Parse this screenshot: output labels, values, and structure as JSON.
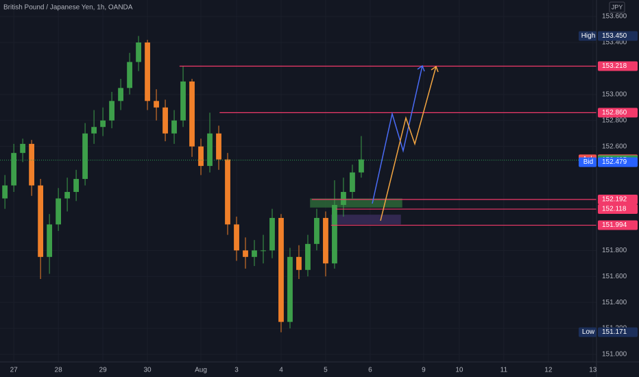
{
  "chart_data": {
    "type": "candlestick",
    "title": "British Pound / Japanese Yen, 1h, OANDA",
    "currency": "JPY",
    "up_color": "#3d9f4a",
    "down_color": "#f0802a",
    "level_color": "#f23a6a",
    "grid": true,
    "xlim": [
      -0.31,
      13.08
    ],
    "ylim": [
      150.942,
      153.727
    ],
    "xticks": [
      {
        "value": 0,
        "label": "27"
      },
      {
        "value": 1,
        "label": "28"
      },
      {
        "value": 2,
        "label": "29"
      },
      {
        "value": 3,
        "label": "30"
      },
      {
        "value": 4.2,
        "label": "Aug"
      },
      {
        "value": 5,
        "label": "3"
      },
      {
        "value": 6,
        "label": "4"
      },
      {
        "value": 7,
        "label": "5"
      },
      {
        "value": 8,
        "label": "6"
      },
      {
        "value": 9.2,
        "label": "9"
      },
      {
        "value": 10,
        "label": "10"
      },
      {
        "value": 11,
        "label": "11"
      },
      {
        "value": 12,
        "label": "12"
      },
      {
        "value": 13,
        "label": "13"
      }
    ],
    "yticks": [
      {
        "value": 153.6,
        "label": "153.600"
      },
      {
        "value": 153.4,
        "label": "153.400"
      },
      {
        "value": 153.0,
        "label": "153.000"
      },
      {
        "value": 152.8,
        "label": "152.800"
      },
      {
        "value": 152.6,
        "label": "152.600"
      },
      {
        "value": 151.8,
        "label": "151.800"
      },
      {
        "value": 151.6,
        "label": "151.600"
      },
      {
        "value": 151.4,
        "label": "151.400"
      },
      {
        "value": 151.2,
        "label": "151.200"
      },
      {
        "value": 151.0,
        "label": "151.000"
      }
    ],
    "x": [
      -0.2,
      0,
      0.2,
      0.4,
      0.6,
      0.8,
      1,
      1.2,
      1.4,
      1.6,
      1.8,
      2,
      2.2,
      2.4,
      2.6,
      2.8,
      3,
      3.2,
      3.4,
      3.6,
      3.8,
      4,
      4.2,
      4.4,
      4.6,
      4.8,
      5,
      5.2,
      5.4,
      5.6,
      5.8,
      6,
      6.2,
      6.4,
      6.6,
      6.8,
      7,
      7.2,
      7.4,
      7.6,
      7.8
    ],
    "open": [
      152.2,
      152.3,
      152.55,
      152.62,
      152.3,
      151.75,
      152.0,
      152.2,
      152.25,
      152.35,
      152.7,
      152.75,
      152.8,
      152.95,
      153.05,
      153.25,
      153.4,
      152.95,
      152.9,
      152.7,
      152.8,
      153.1,
      152.6,
      152.45,
      152.7,
      152.5,
      152.0,
      151.8,
      151.75,
      151.8,
      151.8,
      152.05,
      151.25,
      151.75,
      151.65,
      151.85,
      152.05,
      151.7,
      152.15,
      152.25,
      152.4
    ],
    "high": [
      152.38,
      152.62,
      152.66,
      152.65,
      152.35,
      152.08,
      152.28,
      152.36,
      152.42,
      152.78,
      152.88,
      152.9,
      153.02,
      153.12,
      153.32,
      153.45,
      153.42,
      153.04,
      152.96,
      152.88,
      153.22,
      153.12,
      152.66,
      152.86,
      152.76,
      152.55,
      152.06,
      151.9,
      151.88,
      151.92,
      152.12,
      152.08,
      151.82,
      151.84,
      151.92,
      152.12,
      152.1,
      152.34,
      152.36,
      152.46,
      152.68
    ],
    "low": [
      152.12,
      152.25,
      152.48,
      152.22,
      151.58,
      151.62,
      151.95,
      152.1,
      152.18,
      152.3,
      152.62,
      152.68,
      152.74,
      152.88,
      153.0,
      153.18,
      152.88,
      152.8,
      152.64,
      152.62,
      152.75,
      152.52,
      152.38,
      152.4,
      152.42,
      151.92,
      151.72,
      151.66,
      151.68,
      151.7,
      151.74,
      151.17,
      151.2,
      151.58,
      151.6,
      151.8,
      151.6,
      151.66,
      152.06,
      152.2,
      152.36
    ],
    "close": [
      152.3,
      152.55,
      152.62,
      152.3,
      151.75,
      152.0,
      152.2,
      152.25,
      152.35,
      152.7,
      152.75,
      152.8,
      152.95,
      153.05,
      153.25,
      153.4,
      152.95,
      152.9,
      152.7,
      152.8,
      153.1,
      152.6,
      152.45,
      152.7,
      152.5,
      152.0,
      151.8,
      151.75,
      151.8,
      151.8,
      152.05,
      151.25,
      151.75,
      151.65,
      151.85,
      152.05,
      151.7,
      152.15,
      152.25,
      152.4,
      152.5
    ],
    "levels": [
      {
        "value": 153.218,
        "from": 3.72
      },
      {
        "value": 152.86,
        "label": "152.860",
        "from": 4.62
      },
      {
        "value": 152.192,
        "from": 6.69
      },
      {
        "value": 152.118,
        "from": 7.23
      },
      {
        "value": 151.994,
        "from": 7.12
      }
    ],
    "zones": [
      {
        "x": [
          6.65,
          8.72
        ],
        "y": [
          152.13,
          152.2
        ],
        "color": "#2e6b3a"
      },
      {
        "x": [
          7.12,
          8.69
        ],
        "y": [
          152.0,
          152.075
        ],
        "color": "#3b2d5c"
      }
    ],
    "markers": [
      {
        "name": "High",
        "value": 153.45,
        "label": "153.450",
        "color": "#1c2f5a"
      },
      {
        "name": "Ask",
        "value": 152.501,
        "color": "#f0524f"
      },
      {
        "value": 152.495,
        "color": "#2e9d4f"
      },
      {
        "name": "Bid",
        "value": 152.479,
        "color": "#2962ff"
      },
      {
        "name": "Low",
        "value": 151.171,
        "color": "#1c2f5a"
      }
    ]
  }
}
